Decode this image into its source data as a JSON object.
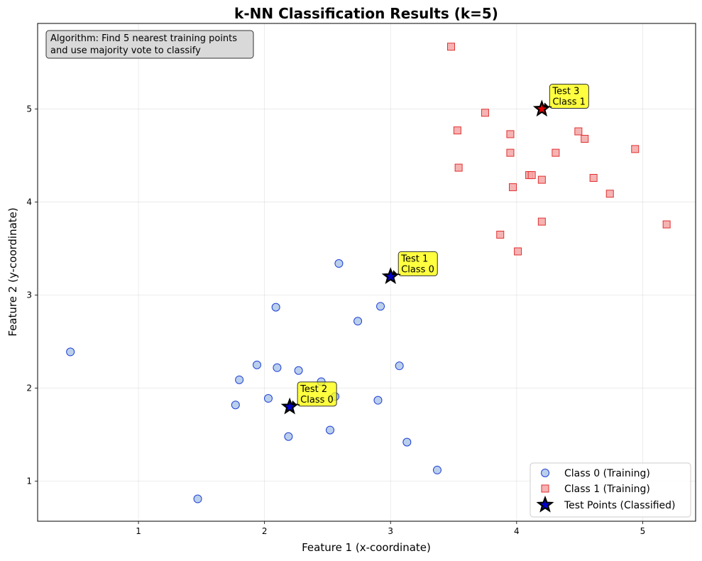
{
  "chart_data": {
    "type": "scatter",
    "title": "k-NN Classification Results (k=5)",
    "xlabel": "Feature 1 (x-coordinate)",
    "ylabel": "Feature 2 (y-coordinate)",
    "xlim": [
      0.2,
      5.42
    ],
    "ylim": [
      0.57,
      5.92
    ],
    "xticks": [
      1,
      2,
      3,
      4,
      5
    ],
    "yticks": [
      1,
      2,
      3,
      4,
      5
    ],
    "grid": true,
    "legend_position": "bottom-right",
    "annotation_box": {
      "lines": [
        "Algorithm: Find 5 nearest training points",
        "and use majority vote to classify"
      ]
    },
    "series": [
      {
        "name": "Class 0 (Training)",
        "marker": "circle",
        "fill": "#aec7e8",
        "edge": "#1f3fd6",
        "points": [
          [
            0.46,
            2.39
          ],
          [
            1.47,
            0.81
          ],
          [
            1.77,
            1.82
          ],
          [
            1.8,
            2.09
          ],
          [
            1.94,
            2.25
          ],
          [
            2.03,
            1.89
          ],
          [
            2.09,
            2.87
          ],
          [
            2.1,
            2.22
          ],
          [
            2.19,
            1.48
          ],
          [
            2.27,
            2.19
          ],
          [
            2.45,
            2.07
          ],
          [
            2.52,
            1.55
          ],
          [
            2.56,
            1.91
          ],
          [
            2.59,
            3.34
          ],
          [
            2.74,
            2.72
          ],
          [
            2.9,
            1.87
          ],
          [
            2.92,
            2.88
          ],
          [
            3.07,
            2.24
          ],
          [
            3.13,
            1.42
          ],
          [
            3.37,
            1.12
          ]
        ]
      },
      {
        "name": "Class 1 (Training)",
        "marker": "square",
        "fill": "#f4a6a6",
        "edge": "#e03030",
        "points": [
          [
            3.48,
            5.67
          ],
          [
            3.53,
            4.77
          ],
          [
            3.54,
            4.37
          ],
          [
            3.75,
            4.96
          ],
          [
            3.87,
            3.65
          ],
          [
            3.95,
            4.73
          ],
          [
            3.95,
            4.53
          ],
          [
            3.97,
            4.16
          ],
          [
            4.01,
            3.47
          ],
          [
            4.1,
            4.29
          ],
          [
            4.12,
            4.29
          ],
          [
            4.2,
            4.24
          ],
          [
            4.2,
            3.79
          ],
          [
            4.31,
            4.53
          ],
          [
            4.49,
            4.76
          ],
          [
            4.54,
            4.68
          ],
          [
            4.61,
            4.26
          ],
          [
            4.74,
            4.09
          ],
          [
            4.94,
            4.57
          ],
          [
            5.19,
            3.76
          ]
        ]
      },
      {
        "name": "Test Points (Classified)",
        "marker": "star",
        "points": [
          {
            "x": 3.0,
            "y": 3.2,
            "class_color": "#0000cc",
            "label": [
              "Test 1",
              "Class 0"
            ]
          },
          {
            "x": 2.2,
            "y": 1.8,
            "class_color": "#0000cc",
            "label": [
              "Test 2",
              "Class 0"
            ]
          },
          {
            "x": 4.2,
            "y": 5.0,
            "class_color": "#e00000",
            "label": [
              "Test 3",
              "Class 1"
            ]
          }
        ]
      }
    ]
  }
}
